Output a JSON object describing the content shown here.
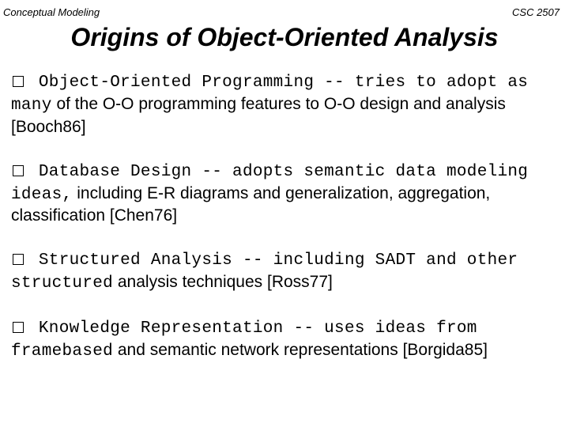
{
  "header": {
    "left": "Conceptual Modeling",
    "right": "CSC 2507"
  },
  "title": "Origins of Object-Oriented Analysis",
  "paras": [
    {
      "lead": " Object-Oriented Programming -- tries to adopt as many",
      "rest": "of the O-O programming features to O-O design and analysis [Booch86]"
    },
    {
      "lead": " Database Design -- adopts semantic data modeling ideas,",
      "rest": "including E-R diagrams and generalization, aggregation, classification [Chen76]"
    },
    {
      "lead": " Structured Analysis -- including SADT and other structured",
      "rest": "analysis techniques [Ross77]"
    },
    {
      "lead": " Knowledge Representation -- uses ideas from framebased",
      "rest": "and semantic network representations [Borgida85]"
    }
  ]
}
